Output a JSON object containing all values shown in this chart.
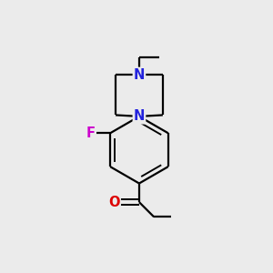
{
  "bg_color": "#ebebeb",
  "bond_color": "#000000",
  "bond_width": 1.6,
  "atom_colors": {
    "N": "#2222dd",
    "O": "#dd0000",
    "F": "#cc00cc",
    "C": "#000000"
  },
  "font_size": 10.5,
  "fig_size": [
    3.0,
    3.0
  ],
  "dpi": 100
}
